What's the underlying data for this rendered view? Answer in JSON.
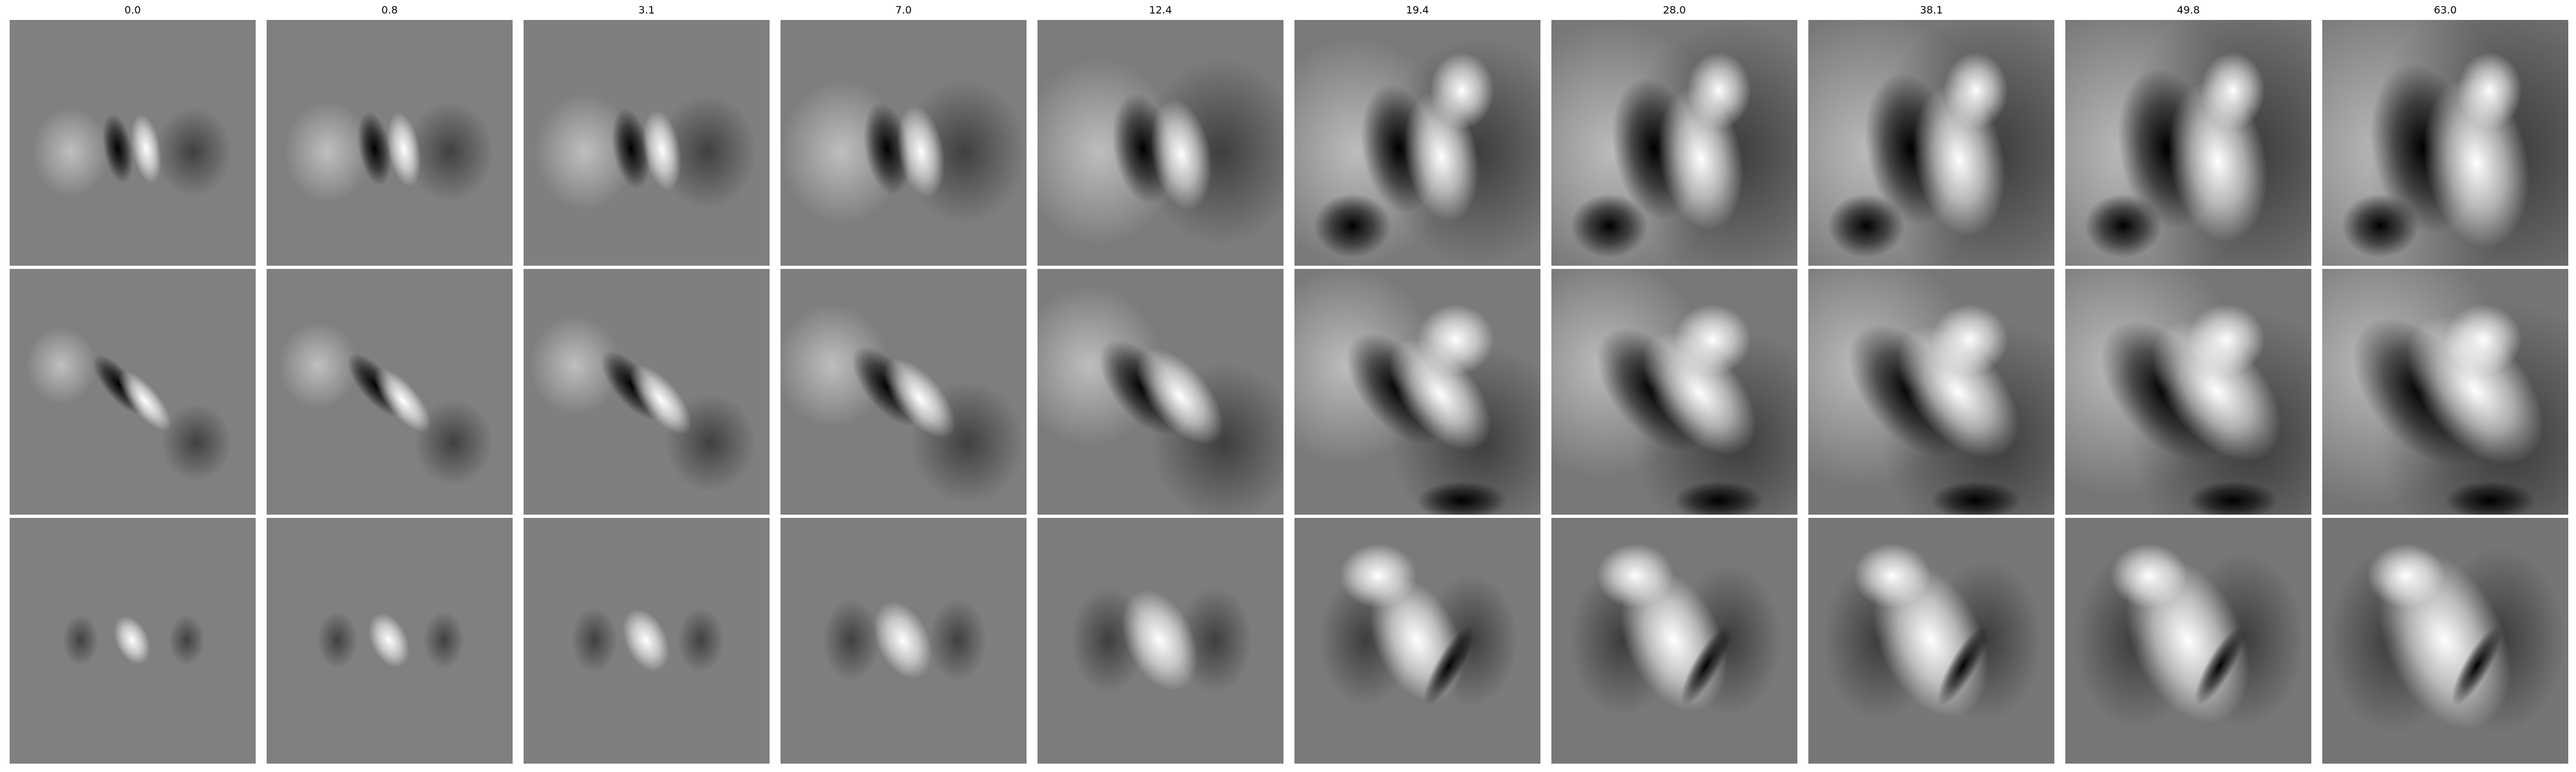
{
  "figure": {
    "column_titles": [
      "0.0",
      "0.8",
      "3.1",
      "7.0",
      "12.4",
      "19.4",
      "28.0",
      "38.1",
      "49.8",
      "63.0"
    ],
    "rows": 3,
    "colormap": "grayscale",
    "background_gray": "#808080"
  },
  "panels": [
    [
      {
        "pattern": "vertical-dipole-dark-left",
        "spread": 0.0
      },
      {
        "pattern": "vertical-dipole-dark-left",
        "spread": 0.05
      },
      {
        "pattern": "vertical-dipole-dark-left",
        "spread": 0.12
      },
      {
        "pattern": "vertical-dipole-dark-left",
        "spread": 0.25
      },
      {
        "pattern": "vertical-dipole-dark-left",
        "spread": 0.45
      },
      {
        "pattern": "vertical-dipole-dark-left",
        "spread": 0.65
      },
      {
        "pattern": "vertical-dipole-dark-left",
        "spread": 0.8
      },
      {
        "pattern": "vertical-dipole-dark-left",
        "spread": 0.9
      },
      {
        "pattern": "vertical-dipole-dark-left",
        "spread": 1.0
      },
      {
        "pattern": "vertical-dipole-dark-left",
        "spread": 1.1
      }
    ],
    [
      {
        "pattern": "diagonal-dipole-dark-upper-left",
        "spread": 0.0
      },
      {
        "pattern": "diagonal-dipole-dark-upper-left",
        "spread": 0.05
      },
      {
        "pattern": "diagonal-dipole-dark-upper-left",
        "spread": 0.12
      },
      {
        "pattern": "diagonal-dipole-dark-upper-left",
        "spread": 0.25
      },
      {
        "pattern": "diagonal-dipole-dark-upper-left",
        "spread": 0.45
      },
      {
        "pattern": "diagonal-dipole-dark-upper-left",
        "spread": 0.65
      },
      {
        "pattern": "diagonal-dipole-dark-upper-left",
        "spread": 0.8
      },
      {
        "pattern": "diagonal-dipole-dark-upper-left",
        "spread": 0.9
      },
      {
        "pattern": "diagonal-dipole-dark-upper-left",
        "spread": 1.0
      },
      {
        "pattern": "diagonal-dipole-dark-upper-left",
        "spread": 1.1
      }
    ],
    [
      {
        "pattern": "center-blob-bright",
        "spread": 0.0
      },
      {
        "pattern": "center-blob-bright",
        "spread": 0.05
      },
      {
        "pattern": "center-blob-bright",
        "spread": 0.12
      },
      {
        "pattern": "center-blob-bright",
        "spread": 0.25
      },
      {
        "pattern": "center-blob-bright",
        "spread": 0.45
      },
      {
        "pattern": "center-blob-bright",
        "spread": 0.65
      },
      {
        "pattern": "center-blob-bright",
        "spread": 0.8
      },
      {
        "pattern": "center-blob-bright",
        "spread": 0.9
      },
      {
        "pattern": "center-blob-bright",
        "spread": 1.0
      },
      {
        "pattern": "center-blob-bright",
        "spread": 1.1
      }
    ]
  ]
}
